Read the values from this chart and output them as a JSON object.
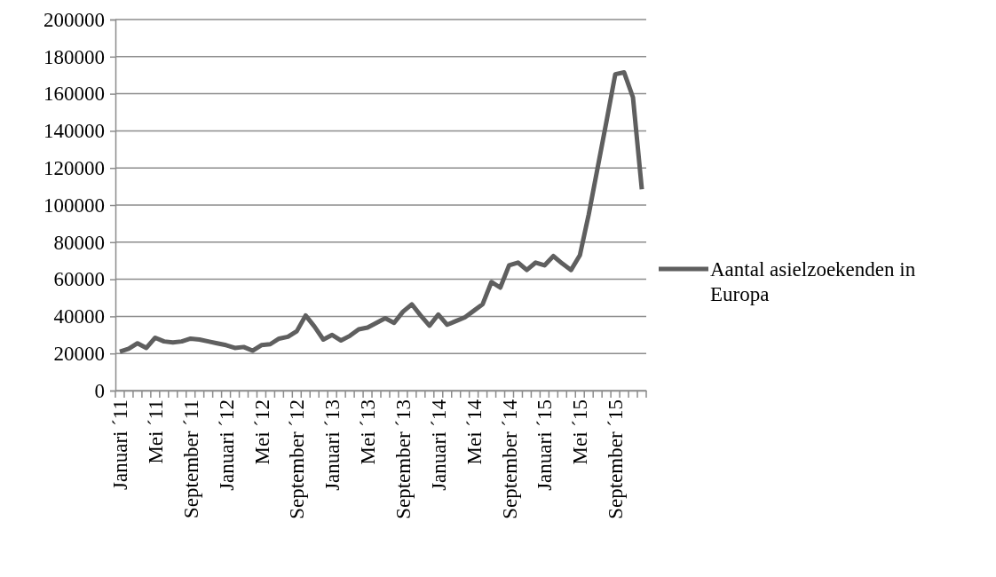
{
  "chart_data": {
    "type": "line",
    "categories": [
      "Januari ´11",
      null,
      null,
      null,
      "Mei ´11",
      null,
      null,
      null,
      "September ´11",
      null,
      null,
      null,
      "Januari ´12",
      null,
      null,
      null,
      "Mei ´12",
      null,
      null,
      null,
      "September ´12",
      null,
      null,
      null,
      "Januari ´13",
      null,
      null,
      null,
      "Mei ´13",
      null,
      null,
      null,
      "September ´13",
      null,
      null,
      null,
      "Januari ´14",
      null,
      null,
      null,
      "Mei ´14",
      null,
      null,
      null,
      "September ´14",
      null,
      null,
      null,
      "Januari ´15",
      null,
      null,
      null,
      "Mei ´15",
      null,
      null,
      null,
      "September ´15",
      null,
      null,
      null
    ],
    "series": [
      {
        "name": "Aantal asielzoekenden in Europa",
        "color": "#5f5f5f",
        "values": [
          21000,
          22500,
          25500,
          23000,
          28500,
          26500,
          26000,
          26500,
          28000,
          27500,
          26500,
          25500,
          24500,
          23000,
          23500,
          21500,
          24500,
          25000,
          28000,
          29000,
          32000,
          40500,
          34500,
          27500,
          30000,
          27000,
          29500,
          33000,
          34000,
          36500,
          39000,
          36500,
          42500,
          46500,
          40500,
          35000,
          41000,
          35500,
          37500,
          39500,
          43000,
          46500,
          58500,
          55500,
          67500,
          69000,
          65000,
          69000,
          67500,
          72500,
          68500,
          65000,
          73000,
          95000,
          120000,
          145000,
          170500,
          171500,
          158000,
          108500
        ]
      }
    ],
    "ylim": [
      0,
      200000
    ],
    "yticks": [
      0,
      20000,
      40000,
      60000,
      80000,
      100000,
      120000,
      140000,
      160000,
      180000,
      200000
    ],
    "grid": "y",
    "legend": "right",
    "marker": "none",
    "line_style": "solid"
  }
}
